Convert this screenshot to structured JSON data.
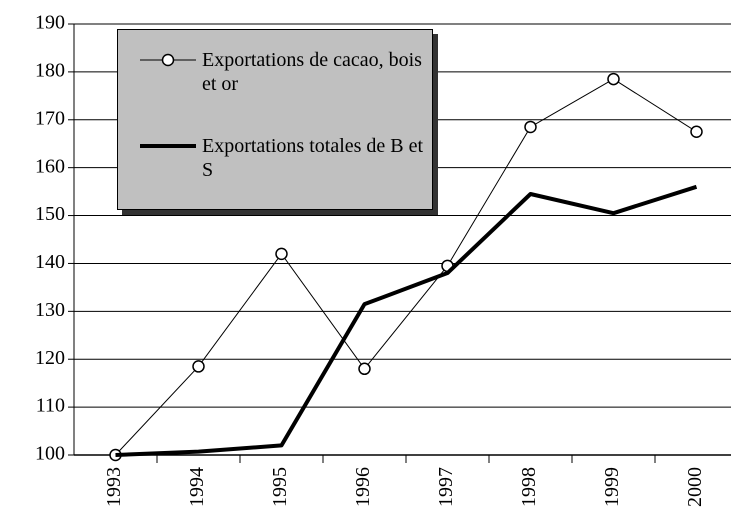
{
  "chart_data": {
    "type": "line",
    "categories": [
      "1993",
      "1994",
      "1995",
      "1996",
      "1997",
      "1998",
      "1999",
      "2000"
    ],
    "series": [
      {
        "name": "Exportations de cacao, bois et or",
        "color": "#000000",
        "line_width": 1,
        "marker": "circle",
        "values": [
          100,
          118.5,
          142,
          118,
          139.5,
          168.5,
          178.5,
          167.5
        ]
      },
      {
        "name": "Exportations totales de B et S",
        "color": "#000000",
        "line_width": 4,
        "marker": null,
        "values": [
          100,
          100.7,
          102,
          131.5,
          138,
          154.5,
          150.5,
          156
        ]
      }
    ],
    "ylim": [
      100,
      190
    ],
    "yticks": [
      100,
      110,
      120,
      130,
      140,
      150,
      160,
      170,
      180,
      190
    ],
    "grid": true,
    "legend": "upper left"
  }
}
